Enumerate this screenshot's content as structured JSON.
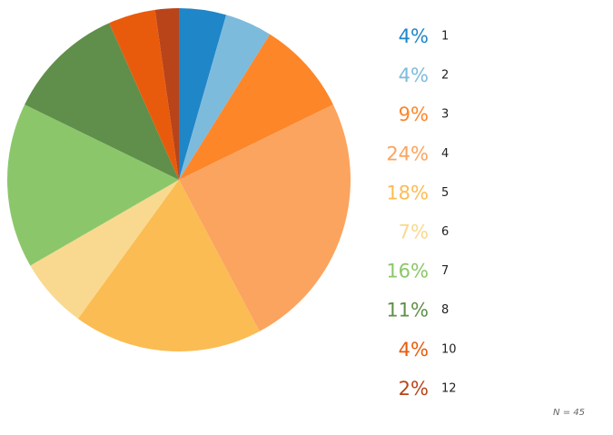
{
  "chart_data": {
    "type": "pie",
    "start": "top",
    "direction": "clockwise",
    "legend_position": "right",
    "slices": [
      {
        "label": "1",
        "pct_text": "4%",
        "value": 2,
        "color": "#1f86c8"
      },
      {
        "label": "2",
        "pct_text": "4%",
        "value": 2,
        "color": "#7dbbdd"
      },
      {
        "label": "3",
        "pct_text": "9%",
        "value": 4,
        "color": "#fd8629"
      },
      {
        "label": "4",
        "pct_text": "24%",
        "value": 11,
        "color": "#fba45f"
      },
      {
        "label": "5",
        "pct_text": "18%",
        "value": 8,
        "color": "#fbbc53"
      },
      {
        "label": "6",
        "pct_text": "7%",
        "value": 3,
        "color": "#f9d98f"
      },
      {
        "label": "7",
        "pct_text": "16%",
        "value": 7,
        "color": "#8bc76a"
      },
      {
        "label": "8",
        "pct_text": "11%",
        "value": 5,
        "color": "#5f8f4a"
      },
      {
        "label": "10",
        "pct_text": "4%",
        "value": 2,
        "color": "#e95b0c"
      },
      {
        "label": "12",
        "pct_text": "2%",
        "value": 1,
        "color": "#b9441a"
      }
    ],
    "n_label": "N = 45"
  }
}
